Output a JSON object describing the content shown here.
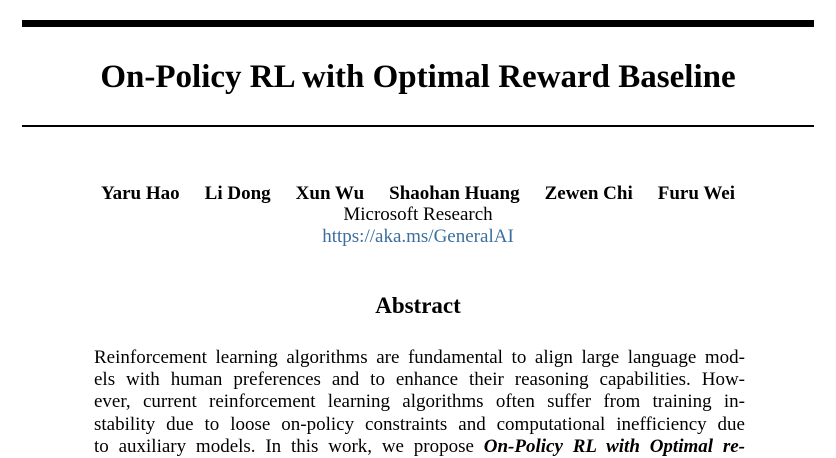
{
  "paper": {
    "title": "On-Policy RL with Optimal Reward Baseline",
    "authors": [
      "Yaru Hao",
      "Li Dong",
      "Xun Wu",
      "Shaohan Huang",
      "Zewen Chi",
      "Furu Wei"
    ],
    "affiliation": "Microsoft Research",
    "url": "https://aka.ms/GeneralAI",
    "abstract_heading": "Abstract",
    "abstract_lines": [
      "Reinforcement learning algorithms are fundamental to align large language mod-",
      "els with human preferences and to enhance their reasoning capabilities.  How-",
      "ever, current reinforcement learning algorithms often suffer from training in-",
      "stability due to loose on-policy constraints and computational inefficiency due"
    ],
    "abstract_last_line_plain": "to auxiliary models.  In this work, we propose ",
    "abstract_last_line_emph": "On-Policy RL with Optimal re-"
  }
}
